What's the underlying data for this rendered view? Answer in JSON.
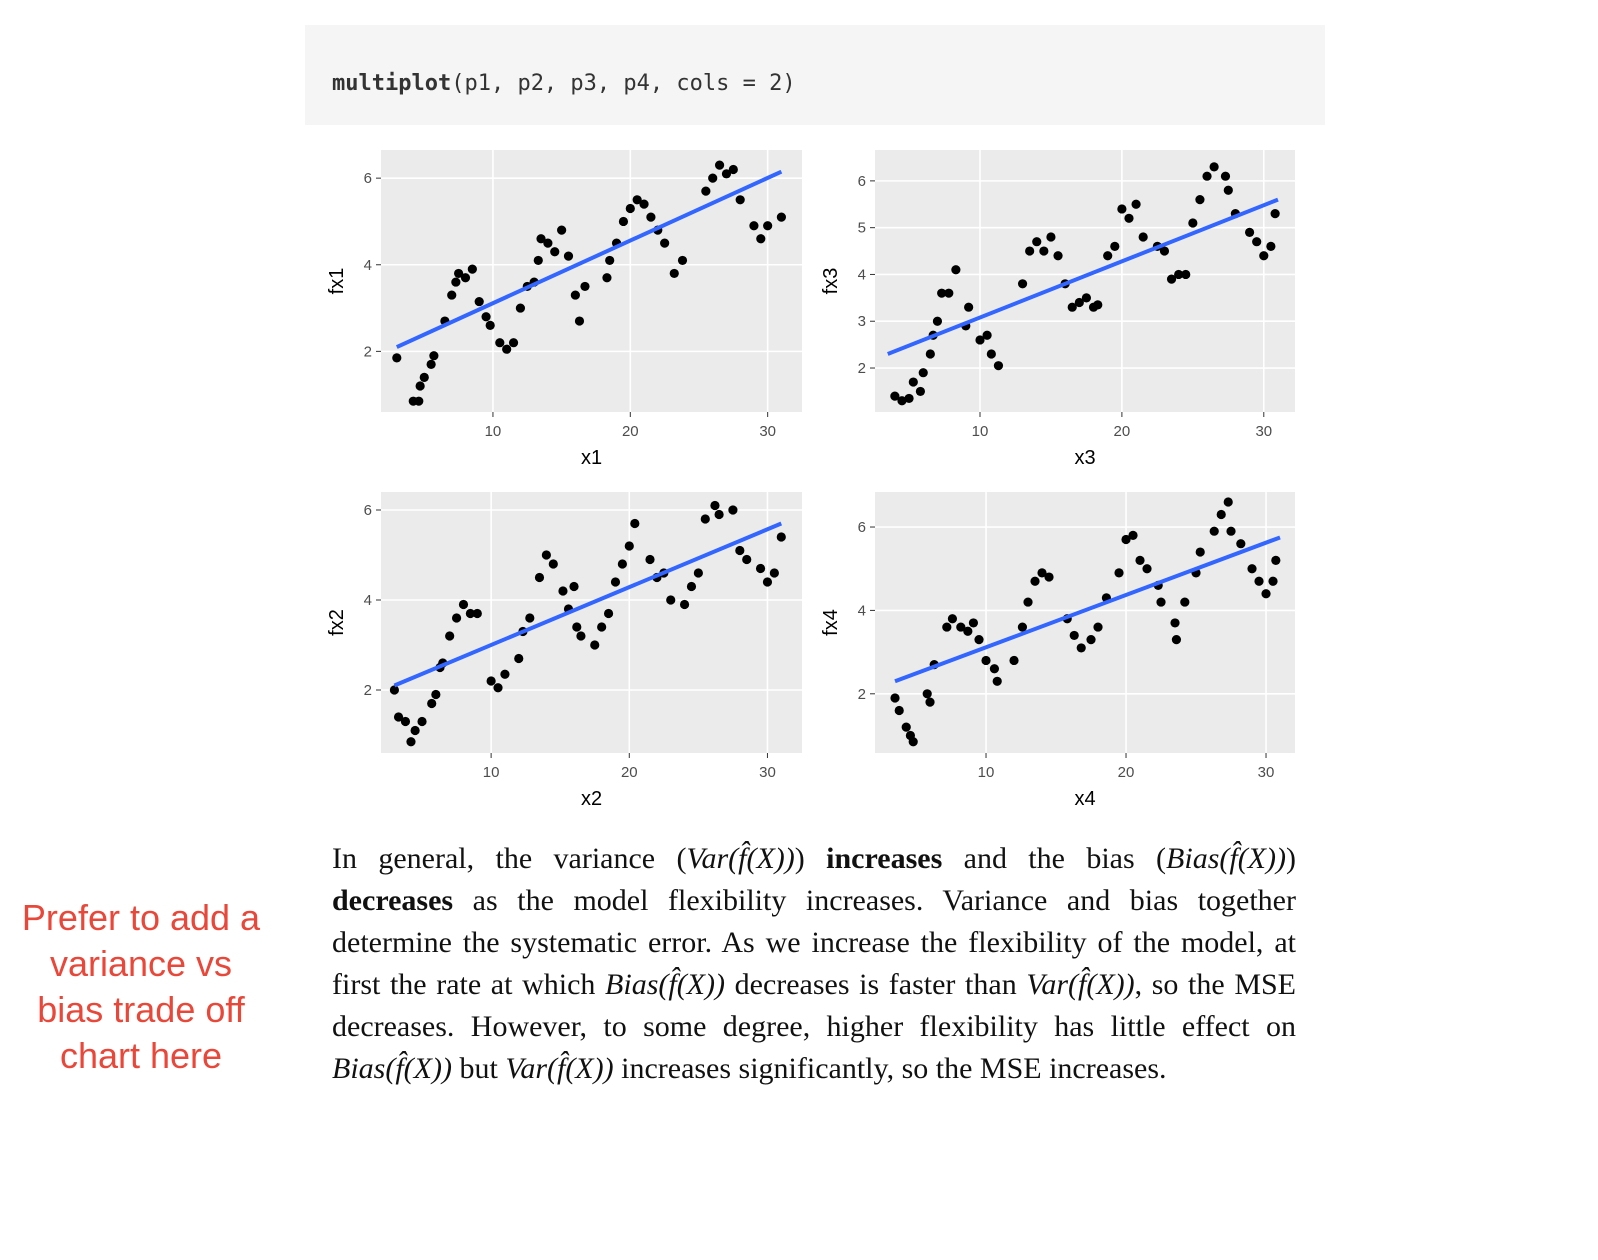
{
  "code": {
    "function": "multiplot",
    "args": "(p1, p2, p3, p4, cols = 2)"
  },
  "chart_data": [
    {
      "type": "scatter",
      "xlabel": "x1",
      "ylabel": "fx1",
      "color": "#000000",
      "grid": true,
      "xlim": [
        1.85,
        32.5
      ],
      "ylim": [
        0.6,
        6.65
      ],
      "xticks": [
        10,
        20,
        30
      ],
      "yticks": [
        2,
        4,
        6
      ],
      "x": [
        3,
        4.2,
        4.6,
        4.7,
        5,
        5.5,
        5.7,
        6.5,
        7,
        7.3,
        7.5,
        8,
        8.5,
        9,
        9.5,
        9.8,
        10.5,
        11,
        11.5,
        12,
        12.5,
        13,
        13.3,
        13.5,
        14,
        14.5,
        15,
        15.5,
        16,
        16.3,
        16.7,
        18.3,
        18.5,
        19,
        19.5,
        20,
        20.5,
        21,
        21.5,
        22,
        22.5,
        23.2,
        23.8,
        25.5,
        26,
        26.5,
        27,
        27.5,
        28,
        29,
        29.5,
        30,
        31
      ],
      "values": [
        1.85,
        0.85,
        0.85,
        1.2,
        1.4,
        1.7,
        1.9,
        2.7,
        3.3,
        3.6,
        3.8,
        3.7,
        3.9,
        3.15,
        2.8,
        2.6,
        2.2,
        2.05,
        2.2,
        3.0,
        3.5,
        3.6,
        4.1,
        4.6,
        4.5,
        4.3,
        4.8,
        4.2,
        3.3,
        2.7,
        3.5,
        3.7,
        4.1,
        4.5,
        5.0,
        5.3,
        5.5,
        5.4,
        5.1,
        4.8,
        4.5,
        3.8,
        4.1,
        5.7,
        6.0,
        6.3,
        6.1,
        6.2,
        5.5,
        4.9,
        4.6,
        4.9,
        5.1
      ],
      "fit": {
        "color": "#3366ff",
        "x": [
          3,
          31
        ],
        "values": [
          2.1,
          6.15
        ]
      }
    },
    {
      "type": "scatter",
      "xlabel": "x2",
      "ylabel": "fx2",
      "color": "#000000",
      "grid": true,
      "xlim": [
        2.03,
        32.5
      ],
      "ylim": [
        0.6,
        6.4
      ],
      "xticks": [
        10,
        20,
        30
      ],
      "yticks": [
        2,
        4,
        6
      ],
      "x": [
        3,
        3.3,
        3.8,
        4.2,
        4.5,
        5,
        5.7,
        6,
        6.3,
        6.5,
        7,
        7.5,
        8,
        8.5,
        9,
        10,
        10.5,
        11,
        12,
        12.3,
        12.8,
        13.5,
        14,
        14.5,
        15.2,
        15.6,
        16,
        16.2,
        16.5,
        17.5,
        18,
        18.5,
        19,
        19.5,
        20,
        20.4,
        21.5,
        22,
        22.5,
        23,
        24,
        24.5,
        25,
        25.5,
        26.2,
        26.5,
        27.5,
        28,
        28.5,
        29.5,
        30,
        30.5,
        31
      ],
      "values": [
        2.0,
        1.4,
        1.3,
        0.85,
        1.1,
        1.3,
        1.7,
        1.9,
        2.5,
        2.6,
        3.2,
        3.6,
        3.9,
        3.7,
        3.7,
        2.2,
        2.05,
        2.35,
        2.7,
        3.3,
        3.6,
        4.5,
        5.0,
        4.8,
        4.2,
        3.8,
        4.3,
        3.4,
        3.2,
        3.0,
        3.4,
        3.7,
        4.4,
        4.8,
        5.2,
        5.7,
        4.9,
        4.5,
        4.6,
        4.0,
        3.9,
        4.3,
        4.6,
        5.8,
        6.1,
        5.9,
        6.0,
        5.1,
        4.9,
        4.7,
        4.4,
        4.6,
        5.4
      ],
      "fit": {
        "color": "#3366ff",
        "x": [
          3,
          31
        ],
        "values": [
          2.1,
          5.7
        ]
      }
    },
    {
      "type": "scatter",
      "xlabel": "x3",
      "ylabel": "fx3",
      "color": "#000000",
      "grid": true,
      "xlim": [
        2.6,
        32.2
      ],
      "ylim": [
        1.06,
        6.66
      ],
      "xticks": [
        10,
        20,
        30
      ],
      "yticks": [
        2,
        3,
        4,
        5,
        6
      ],
      "x": [
        4,
        4.5,
        5,
        5.3,
        5.8,
        6,
        6.5,
        6.7,
        7,
        7.3,
        7.8,
        8.3,
        9,
        9.2,
        10,
        10.5,
        10.8,
        11.3,
        13,
        13.5,
        14,
        14.5,
        15,
        15.5,
        16,
        16.5,
        17,
        17.5,
        18,
        18.3,
        19,
        19.5,
        20,
        20.5,
        21,
        21.5,
        22.5,
        23,
        23.5,
        24,
        24.5,
        25,
        25.5,
        26,
        26.5,
        27.3,
        27.5,
        28,
        29,
        29.5,
        30,
        30.5,
        30.8
      ],
      "values": [
        1.4,
        1.3,
        1.35,
        1.7,
        1.5,
        1.9,
        2.3,
        2.7,
        3.0,
        3.6,
        3.6,
        4.1,
        2.9,
        3.3,
        2.6,
        2.7,
        2.3,
        2.05,
        3.8,
        4.5,
        4.7,
        4.5,
        4.8,
        4.4,
        3.8,
        3.3,
        3.4,
        3.5,
        3.3,
        3.35,
        4.4,
        4.6,
        5.4,
        5.2,
        5.5,
        4.8,
        4.6,
        4.5,
        3.9,
        4.0,
        4.0,
        5.1,
        5.6,
        6.1,
        6.3,
        6.1,
        5.8,
        5.3,
        4.9,
        4.7,
        4.4,
        4.6,
        5.3
      ],
      "fit": {
        "color": "#3366ff",
        "x": [
          3.5,
          31
        ],
        "values": [
          2.3,
          5.6
        ]
      }
    },
    {
      "type": "scatter",
      "xlabel": "x4",
      "ylabel": "fx4",
      "color": "#000000",
      "grid": true,
      "xlim": [
        2.07,
        32.07
      ],
      "ylim": [
        0.58,
        6.84
      ],
      "xticks": [
        10,
        20,
        30
      ],
      "yticks": [
        2,
        4,
        6
      ],
      "x": [
        3.5,
        3.8,
        4.3,
        4.6,
        4.8,
        5.8,
        6,
        6.3,
        7.2,
        7.6,
        8.2,
        8.7,
        9.1,
        9.5,
        10,
        10.6,
        10.8,
        12,
        12.6,
        13,
        13.5,
        14,
        14.5,
        15.8,
        16.3,
        16.8,
        17.5,
        18,
        18.6,
        19.5,
        20,
        20.5,
        21,
        21.5,
        22.3,
        22.5,
        23.5,
        23.6,
        24.2,
        25,
        25.3,
        26.3,
        26.8,
        27.3,
        27.5,
        28.2,
        29,
        29.5,
        30,
        30.5,
        30.7
      ],
      "values": [
        1.9,
        1.6,
        1.2,
        1.0,
        0.85,
        2.0,
        1.8,
        2.7,
        3.6,
        3.8,
        3.6,
        3.5,
        3.7,
        3.3,
        2.8,
        2.6,
        2.3,
        2.8,
        3.6,
        4.2,
        4.7,
        4.9,
        4.8,
        3.8,
        3.4,
        3.1,
        3.3,
        3.6,
        4.3,
        4.9,
        5.7,
        5.8,
        5.2,
        5.0,
        4.6,
        4.2,
        3.7,
        3.3,
        4.2,
        4.9,
        5.4,
        5.9,
        6.3,
        6.6,
        5.9,
        5.6,
        5.0,
        4.7,
        4.4,
        4.7,
        5.2
      ],
      "fit": {
        "color": "#3366ff",
        "x": [
          3.5,
          31
        ],
        "values": [
          2.3,
          5.75
        ]
      }
    }
  ],
  "paragraph": [
    {
      "style": "plain",
      "text": "In general, the variance ("
    },
    {
      "style": "math",
      "text": "Var(f̂(X))"
    },
    {
      "style": "plain",
      "text": ") "
    },
    {
      "style": "bold",
      "text": "increases"
    },
    {
      "style": "plain",
      "text": " and the bias ("
    },
    {
      "style": "math",
      "text": "Bias(f̂(X))"
    },
    {
      "style": "plain",
      "text": ") "
    },
    {
      "style": "bold",
      "text": "decreases"
    },
    {
      "style": "plain",
      "text": " as the model flexibility increases. Variance and bias together determine the systematic error. As we increase the flexibility of the model, at first the rate at which "
    },
    {
      "style": "math",
      "text": "Bias(f̂(X))"
    },
    {
      "style": "plain",
      "text": " decreases is faster than "
    },
    {
      "style": "math",
      "text": "Var(f̂(X))"
    },
    {
      "style": "plain",
      "text": ", so the MSE decreases. However, to some degree, higher flexibility has little effect on "
    },
    {
      "style": "math",
      "text": "Bias(f̂(X))"
    },
    {
      "style": "plain",
      "text": " but "
    },
    {
      "style": "math",
      "text": "Var(f̂(X))"
    },
    {
      "style": "plain",
      "text": " increases significantly, so the MSE increases."
    }
  ],
  "annotation": "Prefer to add a variance vs bias trade off chart here"
}
